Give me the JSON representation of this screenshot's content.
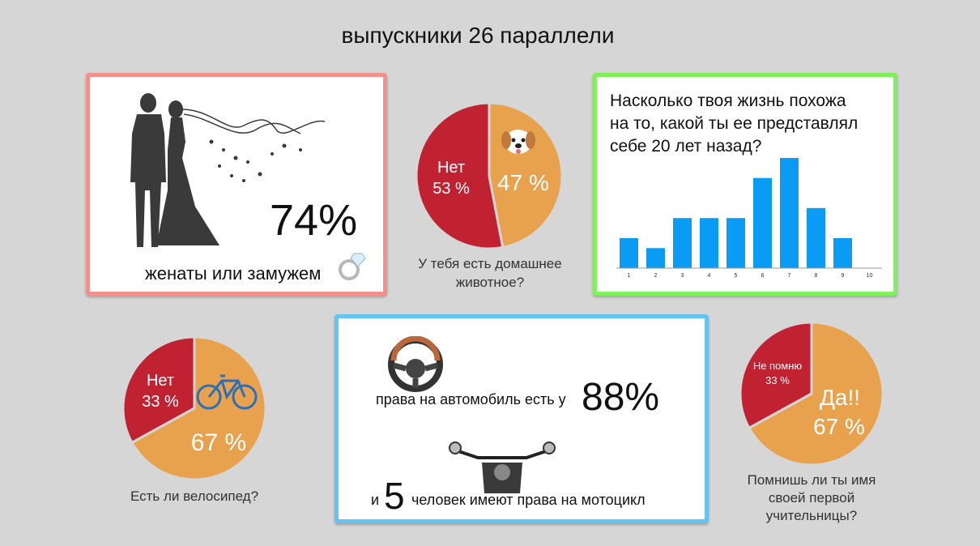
{
  "title": "выпускники 26 параллели",
  "marriage": {
    "percent": "74%",
    "caption": "женаты или замужем"
  },
  "pets": {
    "question_line1": "У тебя есть домашнее",
    "question_line2": "животное?"
  },
  "life": {
    "question_line1": "Насколько твоя жизнь похожа",
    "question_line2": "на то, какой ты ее представлял",
    "question_line3": "себе 20 лет назад?"
  },
  "bike": {
    "question": "Есть ли велосипед?"
  },
  "license": {
    "car_text": "права на автомобиль есть у",
    "car_percent": "88%",
    "moto_prefix": "и",
    "moto_count": "5",
    "moto_text": "человек имеют права на мотоцикл"
  },
  "teacher": {
    "question_line1": "Помнишь ли ты имя",
    "question_line2": "своей первой",
    "question_line3": "учительницы?"
  },
  "chart_data": [
    {
      "type": "pie",
      "title": "У тебя есть домашнее животное?",
      "slices": [
        {
          "label": "Нет",
          "value": 53,
          "value_label": "53 %",
          "color": "#c02232"
        },
        {
          "label": "",
          "value": 47,
          "value_label": "47 %",
          "color": "#e8a24e"
        }
      ]
    },
    {
      "type": "bar",
      "title": "Насколько твоя жизнь похожа на то, какой ты ее представлял себе 20 лет назад?",
      "categories": [
        "1",
        "2",
        "3",
        "4",
        "5",
        "6",
        "7",
        "8",
        "9",
        "10"
      ],
      "values": [
        3,
        2,
        5,
        5,
        5,
        9,
        11,
        6,
        3,
        0
      ],
      "ylim": [
        0,
        11
      ],
      "color": "#0a9cf5",
      "grid": false
    },
    {
      "type": "pie",
      "title": "Есть ли велосипед?",
      "slices": [
        {
          "label": "Нет",
          "value": 33,
          "value_label": "33 %",
          "color": "#c02232"
        },
        {
          "label": "",
          "value": 67,
          "value_label": "67 %",
          "color": "#e8a24e"
        }
      ]
    },
    {
      "type": "pie",
      "title": "Помнишь ли ты имя своей первой учительницы?",
      "slices": [
        {
          "label": "Не помню",
          "value": 33,
          "value_label": "33 %",
          "color": "#c02232"
        },
        {
          "label": "Да!!",
          "value": 67,
          "value_label": "67 %",
          "color": "#e8a24e"
        }
      ]
    }
  ]
}
